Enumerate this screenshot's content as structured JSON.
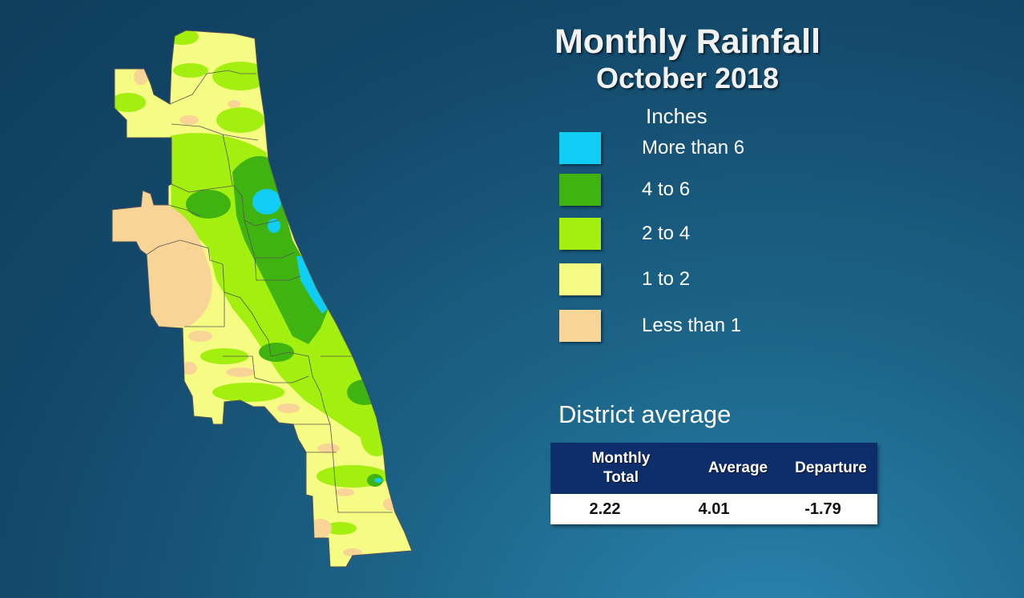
{
  "title": "Monthly Rainfall",
  "subtitle": "October 2018",
  "legend": {
    "units": "Inches",
    "items": [
      {
        "label": "More than 6",
        "color": "#0fcdf5"
      },
      {
        "label": "4 to 6",
        "color": "#3fb310"
      },
      {
        "label": "2 to 4",
        "color": "#a3ef10"
      },
      {
        "label": "1 to 2",
        "color": "#f6fb84"
      },
      {
        "label": "Less than 1",
        "color": "#f8d597"
      }
    ]
  },
  "district_average": {
    "heading": "District average",
    "columns": [
      "Monthly Total",
      "Average",
      "Departure"
    ],
    "values": [
      "2.22",
      "4.01",
      "-1.79"
    ]
  },
  "map": {
    "outline_color": "#555555"
  }
}
